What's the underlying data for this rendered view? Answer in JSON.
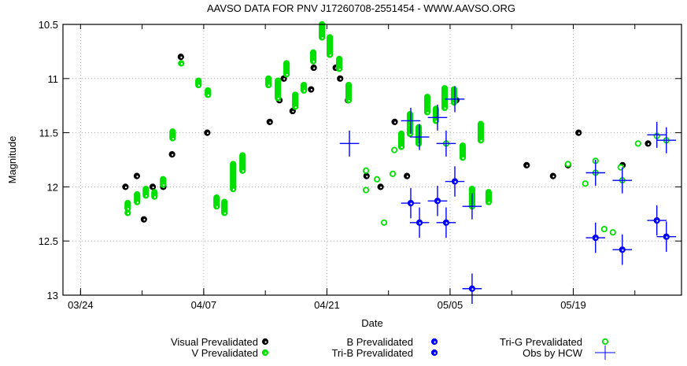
{
  "chart_data": {
    "type": "scatter",
    "title": "AAVSO DATA FOR PNV J17260708-2551454 - WWW.AAVSO.ORG",
    "xlabel": "Date",
    "ylabel": "Magnitude",
    "x_units": "days after 03/24",
    "xlim": [
      -2,
      68.3
    ],
    "ylim": [
      13,
      10.5
    ],
    "y_inverted": true,
    "grid": true,
    "xticks": [
      {
        "day": 0,
        "label": "03/24"
      },
      {
        "day": 14,
        "label": "04/07"
      },
      {
        "day": 28,
        "label": "04/21"
      },
      {
        "day": 42,
        "label": "05/05"
      },
      {
        "day": 56,
        "label": "05/19"
      }
    ],
    "xminor_every_days": 7,
    "yticks": [
      {
        "v": 10.5,
        "label": "10.5"
      },
      {
        "v": 11,
        "label": "11"
      },
      {
        "v": 11.5,
        "label": "11.5"
      },
      {
        "v": 12,
        "label": "12"
      },
      {
        "v": 12.5,
        "label": "12.5"
      },
      {
        "v": 13,
        "label": "13"
      }
    ],
    "legend_placement": "bottom",
    "series": [
      {
        "name": "Visual Prevalidated",
        "color": "#000000",
        "marker": "dot-circle",
        "points": [
          [
            5.1,
            12.0
          ],
          [
            6.4,
            11.9
          ],
          [
            7.2,
            12.3
          ],
          [
            8.2,
            12.0
          ],
          [
            9.4,
            12.0
          ],
          [
            10.4,
            11.7
          ],
          [
            11.4,
            10.8
          ],
          [
            14.4,
            11.5
          ],
          [
            21.5,
            11.4
          ],
          [
            22.6,
            11.2
          ],
          [
            23.1,
            11.0
          ],
          [
            24.1,
            11.3
          ],
          [
            26.2,
            11.1
          ],
          [
            26.5,
            10.9
          ],
          [
            29.0,
            10.9
          ],
          [
            29.4,
            10.9
          ],
          [
            29.5,
            11.0
          ],
          [
            30.4,
            11.2
          ],
          [
            32.5,
            11.9
          ],
          [
            34.1,
            12.0
          ],
          [
            35.7,
            11.4
          ],
          [
            37.1,
            11.9
          ],
          [
            42.7,
            11.2
          ],
          [
            50.7,
            11.8
          ],
          [
            53.7,
            11.9
          ],
          [
            55.4,
            11.8
          ],
          [
            56.6,
            11.5
          ],
          [
            61.6,
            11.8
          ],
          [
            64.5,
            11.6
          ]
        ]
      },
      {
        "name": "V Prevalidated",
        "color": "#00e000",
        "marker": "dot-circle",
        "runs_day_magmin_magmax": [
          [
            5.36,
            12.15,
            12.2
          ],
          [
            5.36,
            12.24,
            12.24
          ],
          [
            6.43,
            12.07,
            12.14
          ],
          [
            7.42,
            12.02,
            12.08
          ],
          [
            8.4,
            12.05,
            12.09
          ],
          [
            9.38,
            11.93,
            11.98
          ],
          [
            10.46,
            11.49,
            11.55
          ],
          [
            11.44,
            10.86,
            10.86
          ],
          [
            13.4,
            11.02,
            11.06
          ],
          [
            14.48,
            11.11,
            11.15
          ],
          [
            15.46,
            12.1,
            12.18
          ],
          [
            16.35,
            12.14,
            12.24
          ],
          [
            17.34,
            11.79,
            12.02
          ],
          [
            18.41,
            11.71,
            11.85
          ],
          [
            21.36,
            11.0,
            11.06
          ],
          [
            22.43,
            11.02,
            11.18
          ],
          [
            23.41,
            10.86,
            10.96
          ],
          [
            24.4,
            11.15,
            11.26
          ],
          [
            25.38,
            11.06,
            11.11
          ],
          [
            26.45,
            10.76,
            10.84
          ],
          [
            27.44,
            10.5,
            10.62
          ],
          [
            28.33,
            10.62,
            10.78
          ],
          [
            29.4,
            10.82,
            10.91
          ],
          [
            30.47,
            11.06,
            11.2
          ],
          [
            36.46,
            11.51,
            11.63
          ],
          [
            37.44,
            11.33,
            11.51
          ],
          [
            38.43,
            11.45,
            11.6
          ],
          [
            39.41,
            11.17,
            11.31
          ],
          [
            40.39,
            11.28,
            11.39
          ],
          [
            41.38,
            11.09,
            11.27
          ],
          [
            42.45,
            11.1,
            11.22
          ],
          [
            43.43,
            11.62,
            11.73
          ],
          [
            44.5,
            12.02,
            12.18
          ],
          [
            45.49,
            11.42,
            11.57
          ],
          [
            46.38,
            12.05,
            12.14
          ]
        ]
      },
      {
        "name": "B Prevalidated",
        "color": "#0000ff",
        "marker": "dot-circle-errorbars",
        "xerr": 1.1,
        "yerr": 0.07,
        "points": [
          [
            37.53,
            12.15
          ],
          [
            38.52,
            12.33
          ],
          [
            40.57,
            12.13
          ],
          [
            41.55,
            12.33
          ],
          [
            42.54,
            11.95
          ],
          [
            44.5,
            12.94
          ],
          [
            58.53,
            12.47
          ],
          [
            61.57,
            12.58
          ],
          [
            65.5,
            12.31
          ],
          [
            66.58,
            12.46
          ]
        ]
      },
      {
        "name": "Tri-B Prevalidated",
        "color": "#0000ff",
        "marker": "dot-circle",
        "points": []
      },
      {
        "name": "Tri-G Prevalidated",
        "color": "#00e000",
        "marker": "open-circle",
        "points": [
          [
            32.44,
            11.85
          ],
          [
            32.44,
            12.03
          ],
          [
            33.69,
            11.93
          ],
          [
            34.5,
            12.33
          ],
          [
            35.48,
            11.88
          ],
          [
            35.66,
            11.66
          ],
          [
            41.55,
            11.6
          ],
          [
            55.41,
            11.79
          ],
          [
            57.37,
            11.97
          ],
          [
            58.53,
            11.76
          ],
          [
            58.53,
            11.87
          ],
          [
            59.52,
            12.39
          ],
          [
            60.5,
            12.42
          ],
          [
            61.39,
            11.82
          ],
          [
            61.57,
            11.94
          ],
          [
            63.36,
            11.6
          ],
          [
            65.5,
            11.53
          ],
          [
            66.58,
            11.57
          ]
        ]
      },
      {
        "name": "Obs by HCW",
        "color": "#0000ff",
        "marker": "cross",
        "xerr": 1.1,
        "yerr": 0.06,
        "points": [
          [
            30.56,
            11.6
          ],
          [
            37.53,
            11.39
          ],
          [
            38.52,
            11.54
          ],
          [
            40.57,
            11.36
          ],
          [
            41.55,
            11.6
          ],
          [
            42.54,
            11.19
          ],
          [
            44.5,
            12.18
          ],
          [
            58.53,
            11.87
          ],
          [
            61.57,
            11.94
          ],
          [
            65.5,
            11.52
          ],
          [
            66.58,
            11.57
          ]
        ]
      }
    ]
  }
}
